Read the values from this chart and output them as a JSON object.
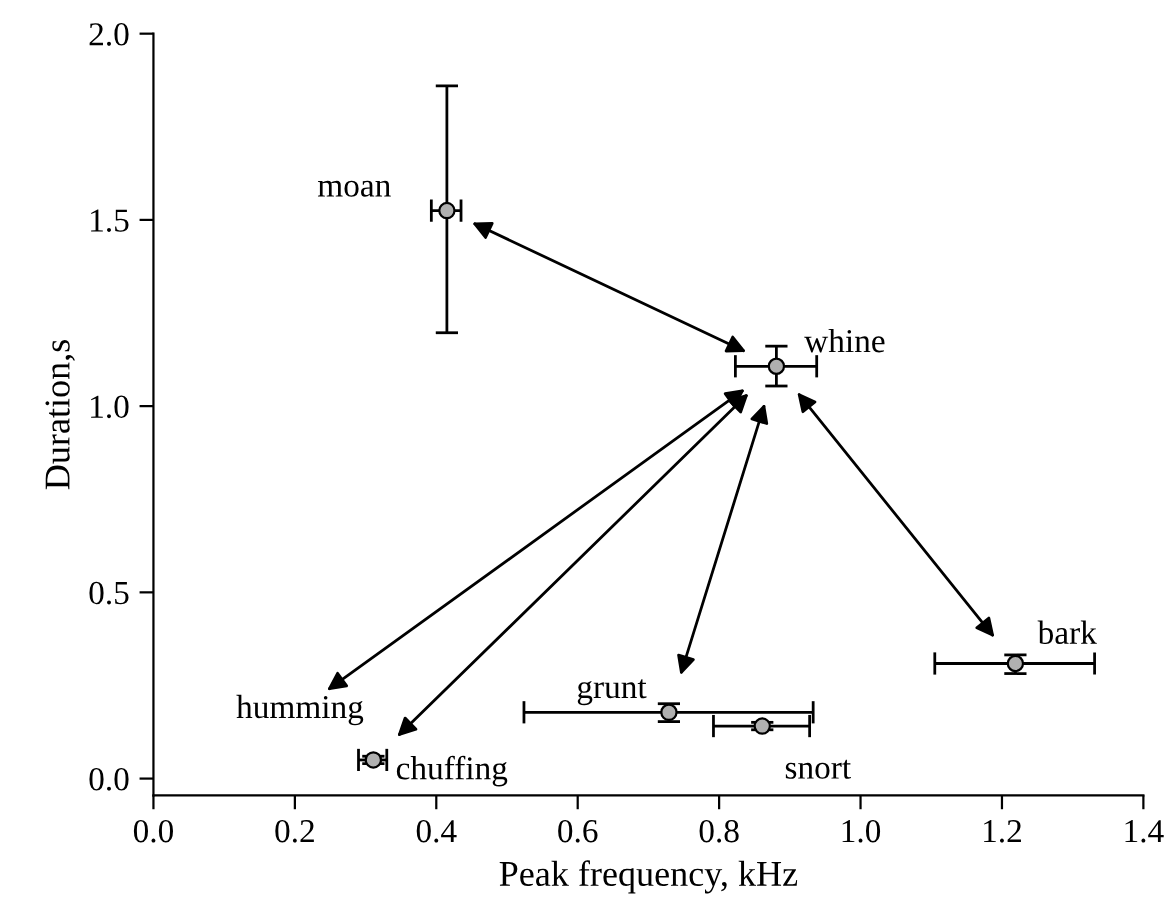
{
  "chart_data": {
    "type": "scatter",
    "xlabel": "Peak frequency, kHz",
    "ylabel": "Duration,s",
    "series": [
      {
        "color": "#b0b0b0",
        "x": [
          0.415,
          0.881,
          1.219,
          0.729,
          0.861,
          0.311
        ],
        "values": [
          1.525,
          1.107,
          0.309,
          0.178,
          0.141,
          0.05
        ],
        "errors": [
          [
            1.197,
            1.86
          ],
          [
            1.054,
            1.161
          ],
          [
            0.282,
            0.332
          ],
          [
            0.153,
            0.201
          ],
          [
            0.131,
            0.151
          ],
          [
            0.04,
            0.06
          ]
        ],
        "xerrors": [
          [
            0.393,
            0.435
          ],
          [
            0.823,
            0.938
          ],
          [
            1.105,
            1.331
          ],
          [
            0.524,
            0.933
          ],
          [
            0.792,
            0.928
          ],
          [
            0.29,
            0.33
          ]
        ]
      }
    ],
    "annotations": [
      {
        "text": "moan",
        "x": 0.415,
        "y": 1.525
      },
      {
        "text": "whine",
        "x": 0.881,
        "y": 1.107
      },
      {
        "text": "bark",
        "x": 1.219,
        "y": 0.309
      },
      {
        "text": "grunt",
        "x": 0.729,
        "y": 0.178
      },
      {
        "text": "snort",
        "x": 0.861,
        "y": 0.141
      },
      {
        "text": "chuffing",
        "x": 0.311,
        "y": 0.05
      },
      "humming"
    ],
    "marker": "circle",
    "xlim": [
      0,
      1.4
    ],
    "ylim": [
      -0.045,
      2.0
    ],
    "xticks": [
      {
        "value": 0,
        "label": "0.0"
      },
      0.2,
      0.4,
      0.6,
      0.8,
      {
        "value": 1,
        "label": "1.0"
      },
      1.2,
      1.4
    ],
    "yticks": [
      {
        "value": 0,
        "label": "0.0"
      },
      0.5,
      {
        "value": 1,
        "label": "1.0"
      },
      1.5,
      {
        "value": 2,
        "label": "2.0"
      }
    ],
    "grid": false,
    "legend": false
  }
}
